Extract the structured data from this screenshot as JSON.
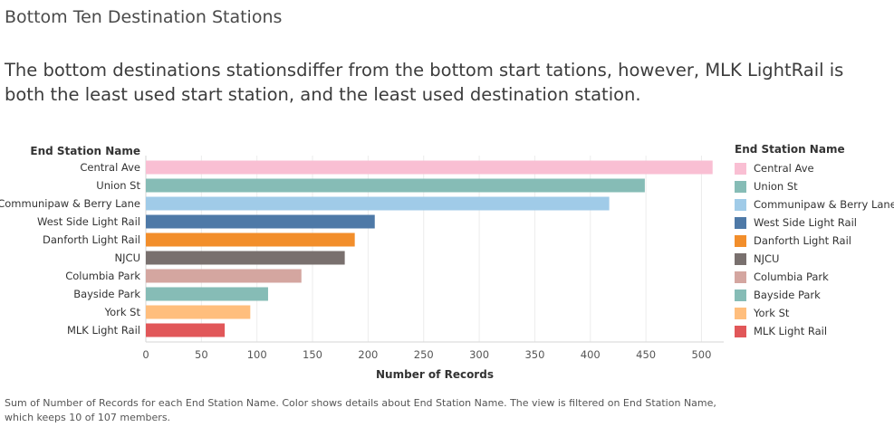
{
  "title": "Bottom Ten Destination Stations",
  "subtitle": "The bottom destinations stationsdiffer from the bottom start tations, however, MLK LightRail is both the least used start station, and the least used destination station.",
  "caption_line1": "Sum of Number of Records for each End Station Name.  Color shows details about End Station Name. The view is filtered on End Station Name,",
  "caption_line2": "which keeps 10 of 107 members.",
  "legend_title": "End Station Name",
  "chart_data": {
    "type": "bar",
    "orientation": "horizontal",
    "ylabel": "End Station Name",
    "xlabel": "Number of Records",
    "xlim": [
      0,
      520
    ],
    "xticks": [
      0,
      50,
      100,
      150,
      200,
      250,
      300,
      350,
      400,
      450,
      500
    ],
    "grid": true,
    "legend_position": "right",
    "categories": [
      "Central Ave",
      "Union St",
      "Communipaw & Berry Lane",
      "West Side Light Rail",
      "Danforth Light Rail",
      "NJCU",
      "Columbia Park",
      "Bayside Park",
      "York St",
      "MLK Light Rail"
    ],
    "values": [
      510,
      449,
      417,
      206,
      188,
      179,
      140,
      110,
      94,
      71
    ],
    "colors": [
      "#f9bfd3",
      "#86bcb6",
      "#a0cbe8",
      "#4e79a7",
      "#f28e2b",
      "#79706e",
      "#d4a6a0",
      "#86bcb6",
      "#ffbe7d",
      "#e15759"
    ]
  }
}
